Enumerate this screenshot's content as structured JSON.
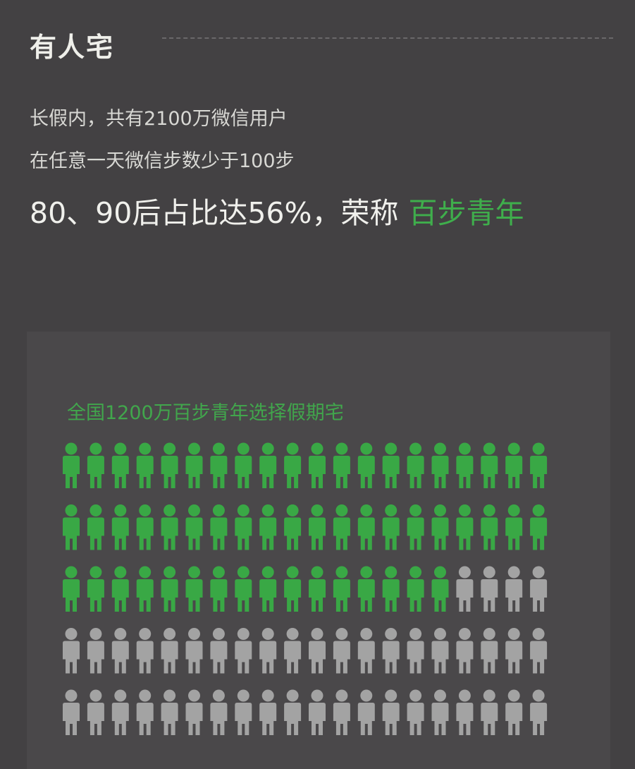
{
  "title": "有人宅",
  "lines": [
    "长假内，共有2100万微信用户",
    "在任意一天微信步数少于100步"
  ],
  "headline": {
    "text": "80、90后占比达56%，荣称",
    "accent": "百步青年"
  },
  "chart_data": {
    "type": "pictogram",
    "title": "全国1200万百步青年选择假期宅",
    "total": 100,
    "highlighted": 56,
    "per_row": 20,
    "colors": {
      "highlight": "#39a845",
      "rest": "#a3a3a3"
    }
  },
  "colors": {
    "background": "#434143",
    "accent": "#3fae4c"
  }
}
